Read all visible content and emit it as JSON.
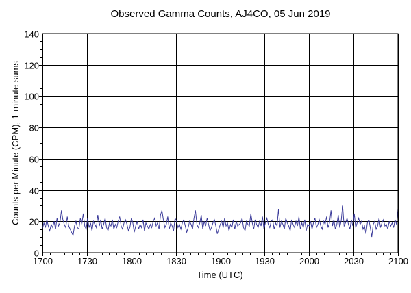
{
  "chart_data": {
    "type": "line",
    "title": "Observed Gamma Counts, AJ4CO, 05 Jun 2019",
    "xlabel": "Time (UTC)",
    "ylabel": "Counts per Minute (CPM), 1-minute sums",
    "x_range_minutes": [
      0,
      240
    ],
    "xlim_labels": [
      "1700",
      "2100"
    ],
    "ylim": [
      0,
      140
    ],
    "x_ticks": [
      {
        "minute": 0,
        "label": "1700"
      },
      {
        "minute": 30,
        "label": "1730"
      },
      {
        "minute": 60,
        "label": "1800"
      },
      {
        "minute": 90,
        "label": "1830"
      },
      {
        "minute": 120,
        "label": "1900"
      },
      {
        "minute": 150,
        "label": "1930"
      },
      {
        "minute": 180,
        "label": "2000"
      },
      {
        "minute": 210,
        "label": "2030"
      },
      {
        "minute": 240,
        "label": "2100"
      }
    ],
    "y_ticks": [
      0,
      20,
      40,
      60,
      80,
      100,
      120,
      140
    ],
    "y_tick_labels": [
      "0",
      "20",
      "40",
      "60",
      "80",
      "100",
      "120",
      "140"
    ],
    "grid": true,
    "line_color": "#3b3b9a",
    "series": [
      {
        "name": "",
        "values": [
          15,
          19,
          16,
          21,
          17,
          14,
          18,
          16,
          20,
          15,
          22,
          17,
          19,
          27,
          21,
          18,
          16,
          23,
          17,
          15,
          13,
          11,
          17,
          20,
          16,
          15,
          22,
          18,
          25,
          17,
          15,
          22,
          16,
          19,
          14,
          20,
          18,
          16,
          24,
          17,
          21,
          15,
          18,
          22,
          16,
          14,
          19,
          17,
          21,
          15,
          18,
          16,
          20,
          23,
          17,
          15,
          19,
          21,
          18,
          14,
          16,
          22,
          19,
          13,
          17,
          20,
          15,
          18,
          16,
          21,
          14,
          19,
          17,
          15,
          18,
          16,
          20,
          22,
          17,
          19,
          15,
          24,
          27,
          21,
          16,
          18,
          23,
          15,
          19,
          17,
          14,
          22,
          20,
          16,
          18,
          15,
          19,
          21,
          17,
          13,
          16,
          20,
          18,
          15,
          22,
          27,
          18,
          16,
          19,
          24,
          15,
          20,
          17,
          22,
          18,
          14,
          16,
          19,
          21,
          17,
          12,
          15,
          18,
          20,
          16,
          22,
          17,
          19,
          14,
          18,
          16,
          21,
          15,
          20,
          17,
          18,
          19,
          22,
          16,
          14,
          20,
          18,
          17,
          25,
          19,
          15,
          21,
          18,
          16,
          20,
          17,
          23,
          15,
          19,
          22,
          18,
          16,
          20,
          21,
          15,
          19,
          17,
          28,
          16,
          20,
          18,
          15,
          22,
          19,
          17,
          14,
          21,
          18,
          16,
          20,
          17,
          23,
          15,
          19,
          16,
          21,
          14,
          18,
          17,
          20,
          15,
          19,
          22,
          16,
          18,
          21,
          17,
          15,
          20,
          18,
          23,
          16,
          19,
          27,
          17,
          21,
          15,
          18,
          24,
          16,
          20,
          30,
          17,
          19,
          22,
          18,
          15,
          21,
          17,
          25,
          16,
          19,
          22,
          18,
          20,
          15,
          17,
          12,
          19,
          21,
          16,
          10,
          18,
          20,
          15,
          17,
          22,
          16,
          19,
          21,
          17,
          18,
          15,
          20,
          17,
          19,
          16,
          21,
          18,
          28
        ]
      }
    ]
  }
}
